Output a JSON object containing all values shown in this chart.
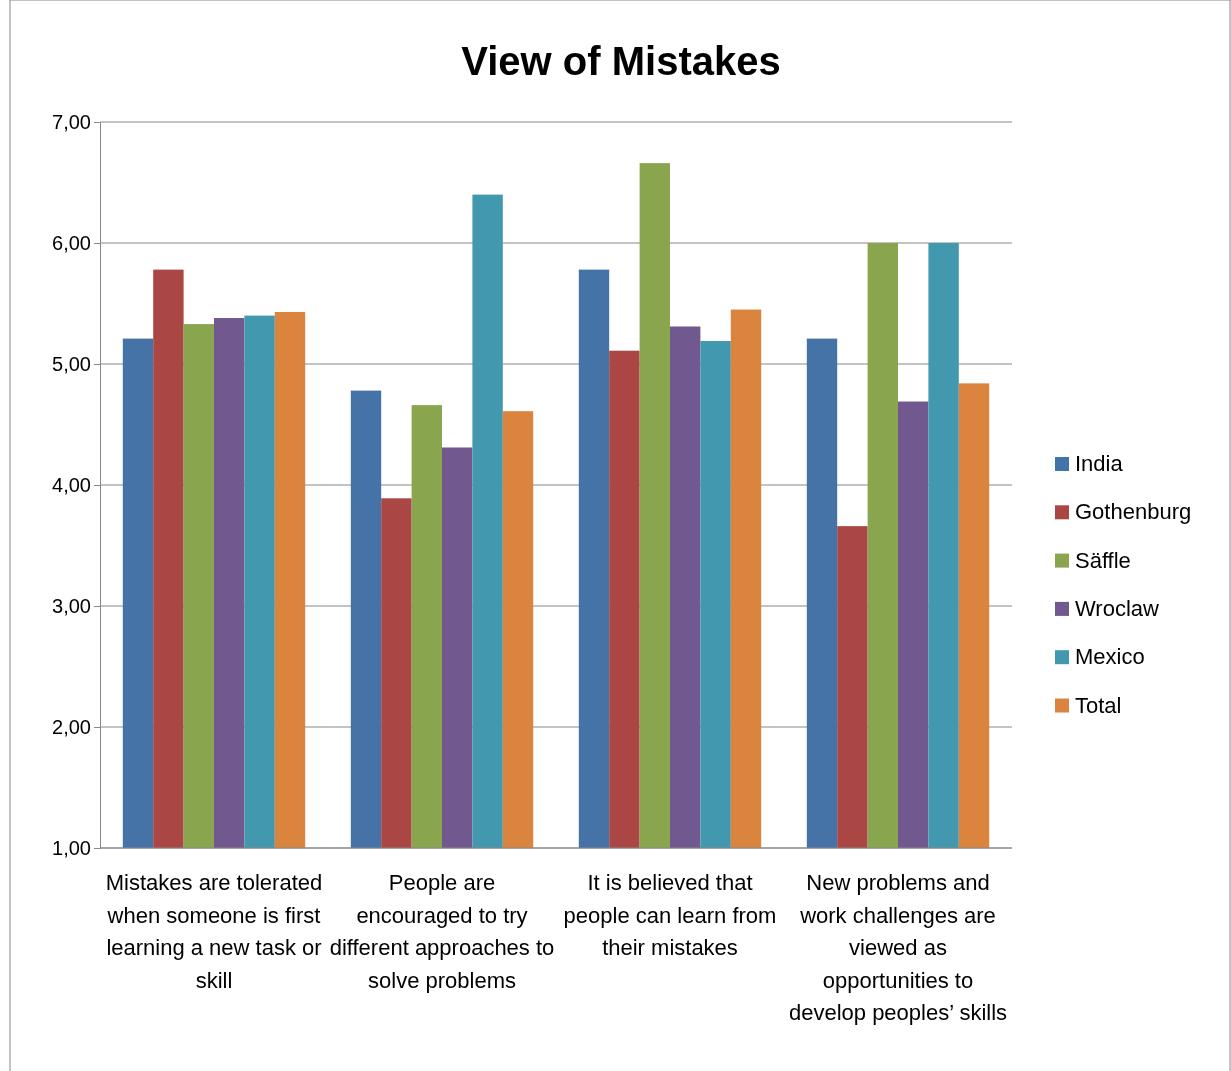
{
  "chart_data": {
    "type": "bar",
    "title": "View of Mistakes",
    "categories": [
      "Mistakes are tolerated when someone is first learning a new task or skill",
      "People are encouraged to try different approaches to solve problems",
      "It is believed that people can learn from their mistakes",
      "New problems and work challenges are viewed as opportunities to develop peoples’ skills"
    ],
    "series": [
      {
        "name": "India",
        "color": "#4572a7",
        "values": [
          5.21,
          4.78,
          5.78,
          5.21
        ]
      },
      {
        "name": "Gothenburg",
        "color": "#aa4643",
        "values": [
          5.78,
          3.89,
          5.11,
          3.66
        ]
      },
      {
        "name": "Säffle",
        "color": "#89a54e",
        "values": [
          5.33,
          4.66,
          6.66,
          6.0
        ]
      },
      {
        "name": "Wroclaw",
        "color": "#71588f",
        "values": [
          5.38,
          4.31,
          5.31,
          4.69
        ]
      },
      {
        "name": "Mexico",
        "color": "#4198af",
        "values": [
          5.4,
          6.4,
          5.19,
          6.0
        ]
      },
      {
        "name": "Total",
        "color": "#db843d",
        "values": [
          5.43,
          4.61,
          5.45,
          4.84
        ]
      }
    ],
    "ylim": [
      1,
      7
    ],
    "yticks": [
      {
        "value": 1,
        "label": "1,00"
      },
      {
        "value": 2,
        "label": "2,00"
      },
      {
        "value": 3,
        "label": "3,00"
      },
      {
        "value": 4,
        "label": "4,00"
      },
      {
        "value": 5,
        "label": "5,00"
      },
      {
        "value": 6,
        "label": "6,00"
      },
      {
        "value": 7,
        "label": "7,00"
      }
    ],
    "grid": "y",
    "legend": "right"
  }
}
